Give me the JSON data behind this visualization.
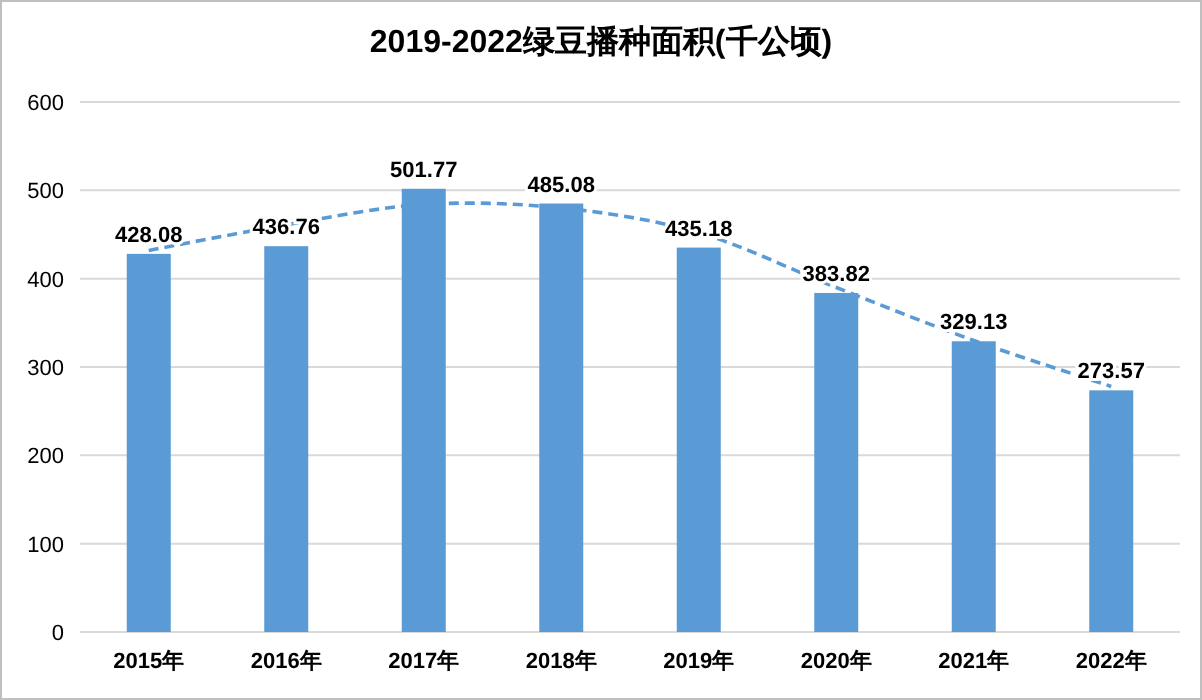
{
  "chart_data": {
    "type": "bar",
    "title": "2019-2022绿豆播种面积(千公顷)",
    "categories": [
      "2015年",
      "2016年",
      "2017年",
      "2018年",
      "2019年",
      "2020年",
      "2021年",
      "2022年"
    ],
    "series": [
      {
        "color": "#5b9bd5",
        "values": [
          428.08,
          436.76,
          501.77,
          485.08,
          435.18,
          383.82,
          329.13,
          273.57
        ],
        "value_labels": [
          "428.08",
          "436.76",
          "501.77",
          "485.08",
          "435.18",
          "383.82",
          "329.13",
          "273.57"
        ]
      },
      {
        "type": "line",
        "color": "#5b9bd5",
        "line_style": "dashed",
        "values": [
          432,
          461,
          484,
          480,
          452,
          390,
          330,
          278
        ]
      }
    ],
    "ylim": [
      0,
      600
    ],
    "yticks": [
      0,
      100,
      200,
      300,
      400,
      500,
      600
    ],
    "grid": "y"
  }
}
